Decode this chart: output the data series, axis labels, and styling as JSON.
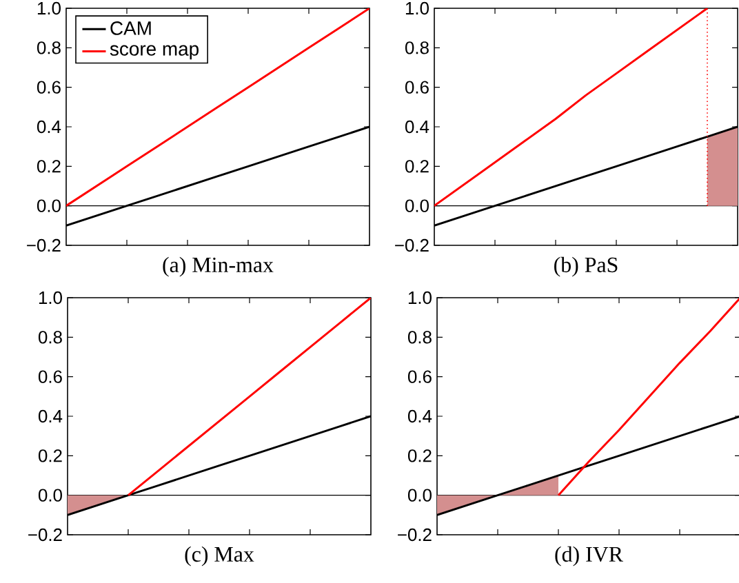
{
  "chart_data": [
    {
      "type": "line",
      "xlabel": "(a) Min-max",
      "ylim": [
        -0.2,
        1.0
      ],
      "tick_labels": "y",
      "legend": "top left",
      "categories": [
        null,
        null,
        null,
        null,
        null,
        null,
        null,
        null,
        null,
        null,
        null
      ],
      "yticks": [
        {
          "value": -0.2,
          "label": "−0.2"
        },
        {
          "value": 0,
          "label": "0.0"
        },
        {
          "value": 0.2,
          "label": "0.2"
        },
        {
          "value": 0.4,
          "label": "0.4"
        },
        {
          "value": 0.6,
          "label": "0.6"
        },
        {
          "value": 0.8,
          "label": "0.8"
        },
        {
          "value": 1.0,
          "label": "1.0"
        }
      ],
      "ref_lines": [
        {
          "axis": "y",
          "value": 0,
          "color": "#000000"
        }
      ],
      "series": [
        {
          "name": "CAM",
          "color": "#000000",
          "values": [
            -0.1,
            -0.05,
            0,
            0.05,
            0.1,
            0.15,
            0.2,
            0.25,
            0.3,
            0.35,
            0.4
          ]
        },
        {
          "name": "score map",
          "color": "#ff0000",
          "values": [
            0,
            0.1,
            0.2,
            0.3,
            0.4,
            0.5,
            0.6,
            0.7,
            0.8,
            0.9,
            1
          ]
        }
      ]
    },
    {
      "type": "line",
      "xlabel": "(b) PaS",
      "ylim": [
        -0.2,
        1.0
      ],
      "tick_labels": "y",
      "categories": [
        null,
        null,
        null,
        null,
        null,
        null,
        null,
        null,
        null,
        null,
        null
      ],
      "yticks": [
        {
          "value": -0.2,
          "label": "−0.2"
        },
        {
          "value": 0,
          "label": "0.0"
        },
        {
          "value": 0.2,
          "label": "0.2"
        },
        {
          "value": 0.4,
          "label": "0.4"
        },
        {
          "value": 0.6,
          "label": "0.6"
        },
        {
          "value": 0.8,
          "label": "0.8"
        },
        {
          "value": 1.0,
          "label": "1.0"
        }
      ],
      "ref_lines": [
        {
          "axis": "y",
          "value": 0,
          "color": "#000000"
        }
      ],
      "series": [
        {
          "type": "area",
          "color": "#d48f8f",
          "values": [
            null,
            null,
            null,
            null,
            null,
            null,
            null,
            null,
            null,
            0.35,
            0.4
          ]
        },
        {
          "color": "#000000",
          "values": [
            -0.1,
            -0.05,
            0,
            0.05,
            0.1,
            0.15,
            0.2,
            0.25,
            0.3,
            0.35,
            0.4
          ]
        },
        {
          "color": "#ff0000",
          "values": [
            0,
            0.11,
            0.22,
            0.33,
            0.44,
            0.56,
            0.67,
            0.78,
            0.89,
            1,
            null
          ]
        }
      ]
    },
    {
      "type": "line",
      "xlabel": "(c) Max",
      "ylim": [
        -0.2,
        1.0
      ],
      "tick_labels": "y",
      "categories": [
        null,
        null,
        null,
        null,
        null,
        null,
        null,
        null,
        null,
        null,
        null
      ],
      "yticks": [
        {
          "value": -0.2,
          "label": "−0.2"
        },
        {
          "value": 0,
          "label": "0.0"
        },
        {
          "value": 0.2,
          "label": "0.2"
        },
        {
          "value": 0.4,
          "label": "0.4"
        },
        {
          "value": 0.6,
          "label": "0.6"
        },
        {
          "value": 0.8,
          "label": "0.8"
        },
        {
          "value": 1.0,
          "label": "1.0"
        }
      ],
      "ref_lines": [
        {
          "axis": "y",
          "value": 0,
          "color": "#000000"
        }
      ],
      "series": [
        {
          "type": "area",
          "color": "#d48f8f",
          "values": [
            -0.1,
            -0.05,
            0,
            null,
            null,
            null,
            null,
            null,
            null,
            null,
            null
          ]
        },
        {
          "color": "#000000",
          "values": [
            -0.1,
            -0.05,
            0,
            0.05,
            0.1,
            0.15,
            0.2,
            0.25,
            0.3,
            0.35,
            0.4
          ]
        },
        {
          "color": "#ff0000",
          "values": [
            null,
            null,
            0,
            0.125,
            0.25,
            0.375,
            0.5,
            0.625,
            0.75,
            0.875,
            1
          ]
        }
      ]
    },
    {
      "type": "line",
      "xlabel": "(d) IVR",
      "ylim": [
        -0.2,
        1.0
      ],
      "tick_labels": "y",
      "categories": [
        null,
        null,
        null,
        null,
        null,
        null,
        null,
        null,
        null,
        null,
        null
      ],
      "yticks": [
        {
          "value": -0.2,
          "label": "−0.2"
        },
        {
          "value": 0,
          "label": "0.0"
        },
        {
          "value": 0.2,
          "label": "0.2"
        },
        {
          "value": 0.4,
          "label": "0.4"
        },
        {
          "value": 0.6,
          "label": "0.6"
        },
        {
          "value": 0.8,
          "label": "0.8"
        },
        {
          "value": 1.0,
          "label": "1.0"
        }
      ],
      "ref_lines": [
        {
          "axis": "y",
          "value": 0,
          "color": "#000000"
        }
      ],
      "series": [
        {
          "type": "area",
          "color": "#d48f8f",
          "values": [
            -0.1,
            -0.05,
            0,
            0.05,
            0.1,
            null,
            null,
            null,
            null,
            null,
            null
          ]
        },
        {
          "color": "#000000",
          "values": [
            -0.1,
            -0.05,
            0,
            0.05,
            0.1,
            0.15,
            0.2,
            0.25,
            0.3,
            0.35,
            0.4
          ]
        },
        {
          "color": "#ff0000",
          "values": [
            null,
            null,
            null,
            null,
            0,
            0.17,
            0.33,
            0.5,
            0.67,
            0.83,
            1
          ]
        }
      ]
    }
  ]
}
